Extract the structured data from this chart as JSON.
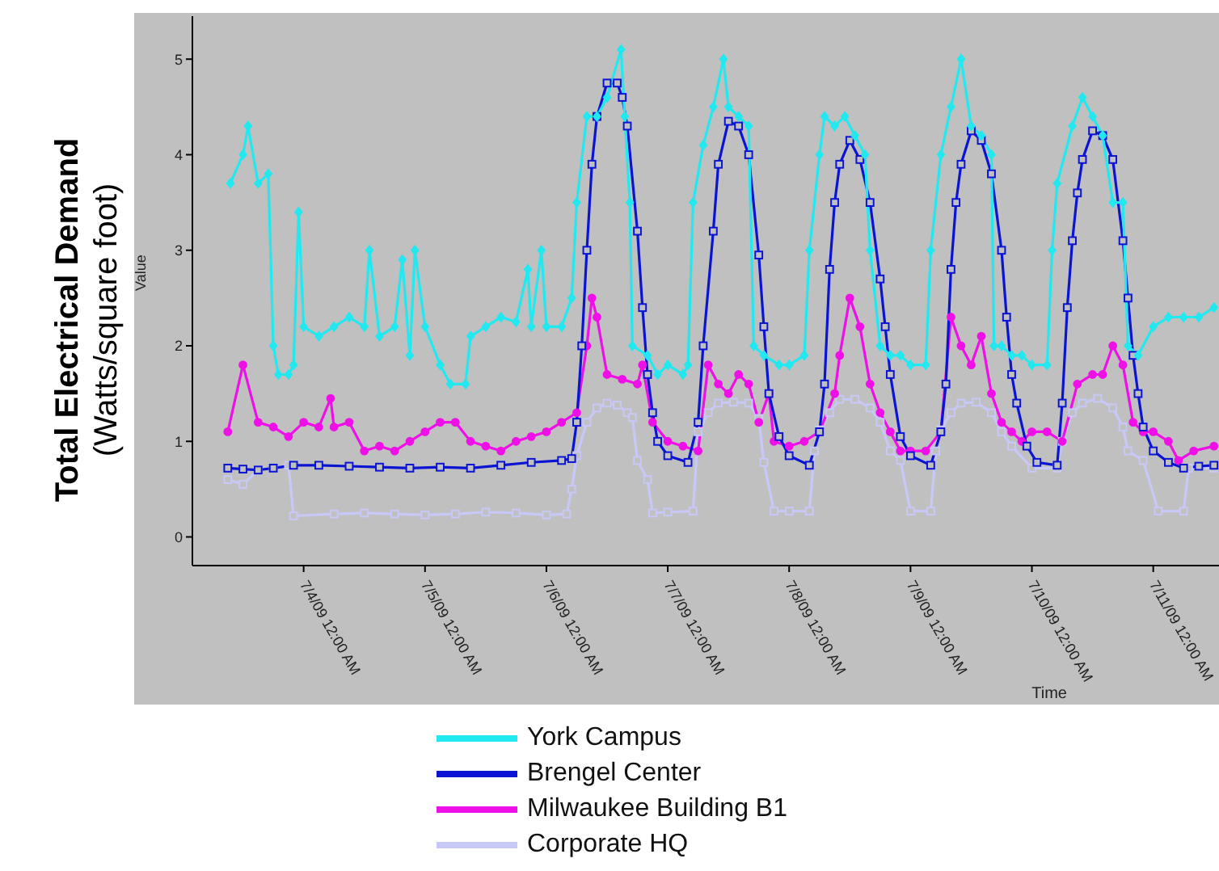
{
  "chart_data": {
    "type": "line",
    "xlabel": "Time",
    "ylabel": "Value",
    "annotations": [
      "Total Electrical Demand",
      "(Watts/square foot)"
    ],
    "xlim": [
      "--07-03T02:00",
      "--07-11T13:00"
    ],
    "xticks": [
      {
        "value": "--07-04T00:00",
        "label": "7/4/09 12:00 AM"
      },
      {
        "value": "--07-05T00:00",
        "label": "7/5/09 12:00 AM"
      },
      {
        "value": "--07-06T00:00",
        "label": "7/6/09 12:00 AM"
      },
      {
        "value": "--07-07T00:00",
        "label": "7/7/09 12:00 AM"
      },
      {
        "value": "--07-08T00:00",
        "label": "7/8/09 12:00 AM"
      },
      {
        "value": "--07-09T00:00",
        "label": "7/9/09 12:00 AM"
      },
      {
        "value": "--07-10T00:00",
        "label": "7/10/09 12:00 AM"
      },
      {
        "value": "--07-11T00:00",
        "label": "7/11/09 12:00 AM"
      }
    ],
    "ylim": [
      -0.3,
      5.45
    ],
    "yticks": [
      0,
      1,
      2,
      3,
      4,
      5
    ],
    "grid": false,
    "legend": "bottom",
    "series": [
      {
        "name": "York Campus",
        "color": "#22e8f0",
        "marker": "diamond",
        "x": [
          "--07-03T09:30",
          "--07-03T12:00",
          "--07-03T13:00",
          "--07-03T15:00",
          "--07-03T17:00",
          "--07-03T18:00",
          "--07-03T19:00",
          "--07-03T21:00",
          "--07-03T22:00",
          "--07-03T23:00",
          "--07-04T00:00",
          "--07-04T03:00",
          "--07-04T06:00",
          "--07-04T09:00",
          "--07-04T12:00",
          "--07-04T13:00",
          "--07-04T15:00",
          "--07-04T18:00",
          "--07-04T19:30",
          "--07-04T21:00",
          "--07-04T22:00",
          "--07-05T00:00",
          "--07-05T03:00",
          "--07-05T05:00",
          "--07-05T08:00",
          "--07-05T09:00",
          "--07-05T12:00",
          "--07-05T15:00",
          "--07-05T18:00",
          "--07-05T20:20",
          "--07-05T21:00",
          "--07-05T23:00",
          "--07-06T00:00",
          "--07-06T03:00",
          "--07-06T05:00",
          "--07-06T06:00",
          "--07-06T08:00",
          "--07-06T10:00",
          "--07-06T12:00",
          "--07-06T14:45",
          "--07-06T15:30",
          "--07-06T16:30",
          "--07-06T17:00",
          "--07-06T20:00",
          "--07-06T22:00",
          "--07-07T00:00",
          "--07-07T03:00",
          "--07-07T04:00",
          "--07-07T05:00",
          "--07-07T07:00",
          "--07-07T09:00",
          "--07-07T11:00",
          "--07-07T12:00",
          "--07-07T14:00",
          "--07-07T16:00",
          "--07-07T17:00",
          "--07-07T19:00",
          "--07-07T22:00",
          "--07-08T00:00",
          "--07-08T03:00",
          "--07-08T04:00",
          "--07-08T06:00",
          "--07-08T07:00",
          "--07-08T09:00",
          "--07-08T11:00",
          "--07-08T13:00",
          "--07-08T15:00",
          "--07-08T16:00",
          "--07-08T18:00",
          "--07-08T20:00",
          "--07-08T22:00",
          "--07-09T00:00",
          "--07-09T03:00",
          "--07-09T04:00",
          "--07-09T06:00",
          "--07-09T08:00",
          "--07-09T10:00",
          "--07-09T12:00",
          "--07-09T14:00",
          "--07-09T16:00",
          "--07-09T16:30",
          "--07-09T18:00",
          "--07-09T20:00",
          "--07-09T22:00",
          "--07-10T00:00",
          "--07-10T03:00",
          "--07-10T04:00",
          "--07-10T05:00",
          "--07-10T08:00",
          "--07-10T10:00",
          "--07-10T12:00",
          "--07-10T14:00",
          "--07-10T16:00",
          "--07-10T18:00",
          "--07-10T19:00",
          "--07-10T21:00",
          "--07-11T00:00",
          "--07-11T03:00",
          "--07-11T06:00",
          "--07-11T09:00",
          "--07-11T12:00"
        ],
        "values": [
          3.7,
          4.0,
          4.3,
          3.7,
          3.8,
          2.0,
          1.7,
          1.7,
          1.8,
          3.4,
          2.2,
          2.1,
          2.2,
          2.3,
          2.2,
          3.0,
          2.1,
          2.2,
          2.9,
          1.9,
          3.0,
          2.2,
          1.8,
          1.6,
          1.6,
          2.1,
          2.2,
          2.3,
          2.25,
          2.8,
          2.2,
          3.0,
          2.2,
          2.2,
          2.5,
          3.5,
          4.4,
          4.4,
          4.6,
          5.1,
          4.4,
          3.5,
          2.0,
          1.9,
          1.7,
          1.8,
          1.7,
          1.8,
          3.5,
          4.1,
          4.5,
          5.0,
          4.5,
          4.4,
          4.3,
          2.0,
          1.9,
          1.8,
          1.8,
          1.9,
          3.0,
          4.0,
          4.4,
          4.3,
          4.4,
          4.2,
          4.0,
          3.0,
          2.0,
          1.9,
          1.9,
          1.8,
          1.8,
          3.0,
          4.0,
          4.5,
          5.0,
          4.3,
          4.2,
          4.0,
          2.0,
          2.0,
          1.9,
          1.9,
          1.8,
          1.8,
          3.0,
          3.7,
          4.3,
          4.6,
          4.4,
          4.2,
          3.5,
          3.5,
          2.0,
          1.9,
          2.2,
          2.3,
          2.3,
          2.3,
          2.4
        ]
      },
      {
        "name": "Brengel Center",
        "color": "#0a14d2",
        "marker": "square",
        "x": [
          "--07-03T09:00",
          "--07-03T12:00",
          "--07-03T15:00",
          "--07-03T18:00",
          "--07-03T22:00",
          "--07-04T03:00",
          "--07-04T09:00",
          "--07-04T15:00",
          "--07-04T21:00",
          "--07-05T03:00",
          "--07-05T09:00",
          "--07-05T15:00",
          "--07-05T21:00",
          "--07-06T03:00",
          "--07-06T05:00",
          "--07-06T06:00",
          "--07-06T07:00",
          "--07-06T08:00",
          "--07-06T09:00",
          "--07-06T10:00",
          "--07-06T12:00",
          "--07-06T14:00",
          "--07-06T15:00",
          "--07-06T16:00",
          "--07-06T18:00",
          "--07-06T19:00",
          "--07-06T20:00",
          "--07-06T21:00",
          "--07-06T22:00",
          "--07-07T00:00",
          "--07-07T04:00",
          "--07-07T06:00",
          "--07-07T07:00",
          "--07-07T09:00",
          "--07-07T10:00",
          "--07-07T12:00",
          "--07-07T14:00",
          "--07-07T16:00",
          "--07-07T18:00",
          "--07-07T19:00",
          "--07-07T20:00",
          "--07-07T22:00",
          "--07-08T00:00",
          "--07-08T04:00",
          "--07-08T06:00",
          "--07-08T07:00",
          "--07-08T08:00",
          "--07-08T09:00",
          "--07-08T10:00",
          "--07-08T12:00",
          "--07-08T14:00",
          "--07-08T16:00",
          "--07-08T18:00",
          "--07-08T19:00",
          "--07-08T20:00",
          "--07-08T22:00",
          "--07-09T00:00",
          "--07-09T04:00",
          "--07-09T06:00",
          "--07-09T07:00",
          "--07-09T08:00",
          "--07-09T09:00",
          "--07-09T10:00",
          "--07-09T12:00",
          "--07-09T14:00",
          "--07-09T16:00",
          "--07-09T18:00",
          "--07-09T19:00",
          "--07-09T20:00",
          "--07-09T21:00",
          "--07-09T23:00",
          "--07-10T01:00",
          "--07-10T05:00",
          "--07-10T06:00",
          "--07-10T07:00",
          "--07-10T08:00",
          "--07-10T09:00",
          "--07-10T10:00",
          "--07-10T12:00",
          "--07-10T14:00",
          "--07-10T16:00",
          "--07-10T18:00",
          "--07-10T19:00",
          "--07-10T20:00",
          "--07-10T21:00",
          "--07-10T22:00",
          "--07-11T00:00",
          "--07-11T03:00",
          "--07-11T06:00",
          "--07-11T09:00",
          "--07-11T12:00"
        ],
        "values": [
          0.72,
          0.71,
          0.7,
          0.72,
          0.75,
          0.75,
          0.74,
          0.73,
          0.72,
          0.73,
          0.72,
          0.75,
          0.78,
          0.8,
          0.82,
          1.2,
          2.0,
          3.0,
          3.9,
          4.4,
          4.75,
          4.75,
          4.6,
          4.3,
          3.2,
          2.4,
          1.7,
          1.3,
          1.0,
          0.85,
          0.78,
          1.2,
          2.0,
          3.2,
          3.9,
          4.35,
          4.3,
          4.0,
          2.95,
          2.2,
          1.5,
          1.05,
          0.85,
          0.75,
          1.1,
          1.6,
          2.8,
          3.5,
          3.9,
          4.15,
          3.95,
          3.5,
          2.7,
          2.2,
          1.7,
          1.05,
          0.85,
          0.75,
          1.1,
          1.6,
          2.8,
          3.5,
          3.9,
          4.25,
          4.15,
          3.8,
          3.0,
          2.3,
          1.7,
          1.4,
          0.95,
          0.78,
          0.75,
          1.4,
          2.4,
          3.1,
          3.6,
          3.95,
          4.25,
          4.2,
          3.95,
          3.1,
          2.5,
          1.9,
          1.5,
          1.15,
          0.9,
          0.78,
          0.72,
          0.74,
          0.75
        ]
      },
      {
        "name": "Milwaukee Building B1",
        "color": "#ee10e6",
        "marker": "circle",
        "x": [
          "--07-03T09:00",
          "--07-03T12:00",
          "--07-03T15:00",
          "--07-03T18:00",
          "--07-03T21:00",
          "--07-04T00:00",
          "--07-04T03:00",
          "--07-04T05:20",
          "--07-04T06:00",
          "--07-04T09:00",
          "--07-04T12:00",
          "--07-04T15:00",
          "--07-04T18:00",
          "--07-04T21:00",
          "--07-05T00:00",
          "--07-05T03:00",
          "--07-05T06:00",
          "--07-05T09:00",
          "--07-05T12:00",
          "--07-05T15:00",
          "--07-05T18:00",
          "--07-05T21:00",
          "--07-06T00:00",
          "--07-06T03:00",
          "--07-06T06:00",
          "--07-06T08:00",
          "--07-06T09:00",
          "--07-06T10:00",
          "--07-06T12:00",
          "--07-06T15:00",
          "--07-06T18:00",
          "--07-06T19:00",
          "--07-06T21:00",
          "--07-07T00:00",
          "--07-07T03:00",
          "--07-07T06:00",
          "--07-07T08:00",
          "--07-07T10:00",
          "--07-07T12:00",
          "--07-07T14:00",
          "--07-07T16:00",
          "--07-07T18:00",
          "--07-07T20:00",
          "--07-07T21:00",
          "--07-08T00:00",
          "--07-08T03:00",
          "--07-08T06:00",
          "--07-08T09:00",
          "--07-08T10:00",
          "--07-08T12:00",
          "--07-08T14:00",
          "--07-08T16:00",
          "--07-08T18:00",
          "--07-08T20:00",
          "--07-08T22:00",
          "--07-09T00:00",
          "--07-09T03:00",
          "--07-09T06:00",
          "--07-09T08:00",
          "--07-09T10:00",
          "--07-09T12:00",
          "--07-09T14:00",
          "--07-09T16:00",
          "--07-09T18:00",
          "--07-09T20:00",
          "--07-09T22:00",
          "--07-10T00:00",
          "--07-10T03:00",
          "--07-10T06:00",
          "--07-10T09:00",
          "--07-10T12:00",
          "--07-10T14:00",
          "--07-10T16:00",
          "--07-10T18:00",
          "--07-10T20:00",
          "--07-10T22:00",
          "--07-11T00:00",
          "--07-11T03:00",
          "--07-11T05:00",
          "--07-11T08:00",
          "--07-11T12:00"
        ],
        "values": [
          1.1,
          1.8,
          1.2,
          1.15,
          1.05,
          1.2,
          1.15,
          1.45,
          1.15,
          1.2,
          0.9,
          0.95,
          0.9,
          1.0,
          1.1,
          1.2,
          1.2,
          1.0,
          0.95,
          0.9,
          1.0,
          1.05,
          1.1,
          1.2,
          1.3,
          2.0,
          2.5,
          2.3,
          1.7,
          1.65,
          1.6,
          1.8,
          1.2,
          1.0,
          0.95,
          0.9,
          1.8,
          1.6,
          1.5,
          1.7,
          1.6,
          1.2,
          1.5,
          1.0,
          0.95,
          1.0,
          1.1,
          1.5,
          1.9,
          2.5,
          2.2,
          1.6,
          1.3,
          1.1,
          0.9,
          0.9,
          0.9,
          1.1,
          2.3,
          2.0,
          1.8,
          2.1,
          1.5,
          1.2,
          1.1,
          1.0,
          1.1,
          1.1,
          1.0,
          1.6,
          1.7,
          1.7,
          2.0,
          1.8,
          1.2,
          1.1,
          1.1,
          1.0,
          0.8,
          0.9,
          0.95
        ]
      },
      {
        "name": "Corporate HQ",
        "color": "#c8c8f8",
        "marker": "square",
        "x": [
          "--07-03T09:00",
          "--07-03T12:00",
          "--07-03T15:00",
          "--07-03T18:00",
          "--07-03T21:00",
          "--07-03T22:00",
          "--07-04T06:00",
          "--07-04T12:00",
          "--07-04T18:00",
          "--07-05T00:00",
          "--07-05T06:00",
          "--07-05T12:00",
          "--07-05T18:00",
          "--07-06T00:00",
          "--07-06T04:00",
          "--07-06T05:00",
          "--07-06T06:00",
          "--07-06T08:00",
          "--07-06T10:00",
          "--07-06T12:00",
          "--07-06T14:00",
          "--07-06T16:00",
          "--07-06T17:00",
          "--07-06T18:00",
          "--07-06T20:00",
          "--07-06T21:00",
          "--07-07T00:00",
          "--07-07T05:00",
          "--07-07T06:00",
          "--07-07T08:00",
          "--07-07T10:00",
          "--07-07T13:00",
          "--07-07T16:00",
          "--07-07T18:00",
          "--07-07T19:00",
          "--07-07T21:00",
          "--07-08T00:00",
          "--07-08T04:00",
          "--07-08T05:00",
          "--07-08T06:00",
          "--07-08T08:00",
          "--07-08T10:00",
          "--07-08T13:00",
          "--07-08T16:00",
          "--07-08T18:00",
          "--07-08T20:00",
          "--07-08T22:00",
          "--07-09T00:00",
          "--07-09T04:00",
          "--07-09T05:00",
          "--07-09T06:00",
          "--07-09T08:00",
          "--07-09T10:00",
          "--07-09T13:00",
          "--07-09T16:00",
          "--07-09T18:00",
          "--07-09T20:00",
          "--07-10T00:00",
          "--07-10T05:00",
          "--07-10T06:00",
          "--07-10T08:00",
          "--07-10T10:00",
          "--07-10T13:00",
          "--07-10T16:00",
          "--07-10T18:00",
          "--07-10T19:00",
          "--07-10T22:00",
          "--07-11T01:00",
          "--07-11T06:00",
          "--07-11T07:00",
          "--07-11T12:00"
        ],
        "values": [
          0.6,
          0.55,
          0.7,
          0.72,
          0.75,
          0.22,
          0.24,
          0.25,
          0.24,
          0.23,
          0.24,
          0.26,
          0.25,
          0.23,
          0.24,
          0.5,
          0.85,
          1.2,
          1.35,
          1.4,
          1.38,
          1.3,
          1.25,
          0.8,
          0.6,
          0.25,
          0.26,
          0.27,
          1.1,
          1.3,
          1.4,
          1.41,
          1.4,
          1.24,
          0.78,
          0.27,
          0.27,
          0.27,
          0.9,
          1.12,
          1.3,
          1.44,
          1.44,
          1.35,
          1.2,
          0.9,
          0.8,
          0.27,
          0.27,
          0.9,
          1.12,
          1.3,
          1.4,
          1.41,
          1.3,
          1.1,
          0.95,
          0.72,
          0.72,
          1.0,
          1.3,
          1.4,
          1.45,
          1.35,
          1.15,
          0.9,
          0.8,
          0.27,
          0.27,
          0.72,
          0.72
        ]
      }
    ]
  }
}
